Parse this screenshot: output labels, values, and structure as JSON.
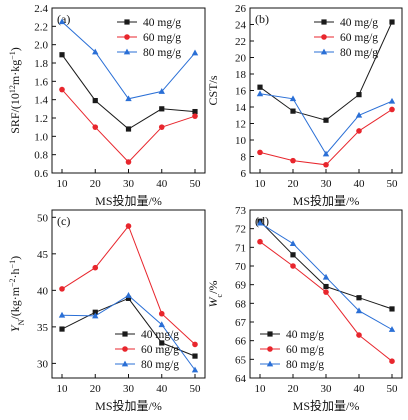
{
  "series_colors": [
    "#1a1a1a",
    "#e8262d",
    "#2a6fd6"
  ],
  "chart_data": [
    {
      "type": "line",
      "panel_label": "(a)",
      "x": [
        10,
        20,
        30,
        40,
        50
      ],
      "xticks": [
        "10",
        "20",
        "30",
        "40",
        "50"
      ],
      "xlim": [
        10,
        50
      ],
      "ylim": [
        0.6,
        2.4
      ],
      "yticks": [
        "0.6",
        "0.8",
        "1.0",
        "1.2",
        "1.4",
        "1.6",
        "1.8",
        "2.0",
        "2.2",
        "2.4"
      ],
      "xlabel": "MS投加量/%",
      "ylabel": "SRF/(10¹²m·kg⁻¹)",
      "legend": "top-right",
      "series": [
        {
          "name": "40 mg/g",
          "marker": "square",
          "values": [
            1.89,
            1.39,
            1.08,
            1.3,
            1.27
          ]
        },
        {
          "name": "60 mg/g",
          "marker": "circle",
          "values": [
            1.51,
            1.1,
            0.72,
            1.1,
            1.22
          ]
        },
        {
          "name": "80 mg/g",
          "marker": "triangle",
          "values": [
            2.25,
            1.92,
            1.41,
            1.49,
            1.91
          ]
        }
      ]
    },
    {
      "type": "line",
      "panel_label": "(b)",
      "x": [
        10,
        20,
        30,
        40,
        50
      ],
      "xticks": [
        "10",
        "20",
        "30",
        "40",
        "50"
      ],
      "xlim": [
        10,
        50
      ],
      "ylim": [
        6,
        26
      ],
      "yticks": [
        "6",
        "8",
        "10",
        "12",
        "14",
        "16",
        "18",
        "20",
        "22",
        "24",
        "26"
      ],
      "xlabel": "MS投加量/%",
      "ylabel": "CST/s",
      "legend": "top-right",
      "series": [
        {
          "name": "40 mg/g",
          "marker": "square",
          "values": [
            16.4,
            13.5,
            12.4,
            15.5,
            24.3
          ]
        },
        {
          "name": "60 mg/g",
          "marker": "circle",
          "values": [
            8.5,
            7.5,
            7.0,
            11.1,
            13.7
          ]
        },
        {
          "name": "80 mg/g",
          "marker": "triangle",
          "values": [
            15.6,
            15.0,
            8.3,
            13.0,
            14.7
          ]
        }
      ]
    },
    {
      "type": "line",
      "panel_label": "(c)",
      "x": [
        10,
        20,
        30,
        40,
        50
      ],
      "xticks": [
        "10",
        "20",
        "30",
        "40",
        "50"
      ],
      "xlim": [
        10,
        50
      ],
      "ylim": [
        28,
        51
      ],
      "yticks": [
        "30",
        "35",
        "40",
        "45",
        "50"
      ],
      "xlabel": "MS投加量/%",
      "ylabel": "Y_N/(kg·m⁻²·h⁻¹)",
      "legend": "bottom-right",
      "series": [
        {
          "name": "40 mg/g",
          "marker": "square",
          "values": [
            34.7,
            37.0,
            38.9,
            32.8,
            31.0
          ]
        },
        {
          "name": "60 mg/g",
          "marker": "circle",
          "values": [
            40.2,
            43.1,
            48.8,
            36.8,
            32.6
          ]
        },
        {
          "name": "80 mg/g",
          "marker": "triangle",
          "values": [
            36.6,
            36.5,
            39.3,
            35.3,
            29.1
          ]
        }
      ]
    },
    {
      "type": "line",
      "panel_label": "(d)",
      "x": [
        10,
        20,
        30,
        40,
        50
      ],
      "xticks": [
        "10",
        "20",
        "30",
        "40",
        "50"
      ],
      "xlim": [
        10,
        50
      ],
      "ylim": [
        64,
        73
      ],
      "yticks": [
        "64",
        "65",
        "66",
        "67",
        "68",
        "69",
        "70",
        "71",
        "72",
        "73"
      ],
      "xlabel": "MS投加量/%",
      "ylabel": "W_c/%",
      "legend": "bottom-left",
      "series": [
        {
          "name": "40 mg/g",
          "marker": "square",
          "values": [
            72.4,
            70.6,
            68.9,
            68.3,
            67.7
          ]
        },
        {
          "name": "60 mg/g",
          "marker": "circle",
          "values": [
            71.3,
            70.0,
            68.6,
            66.3,
            64.9
          ]
        },
        {
          "name": "80 mg/g",
          "marker": "triangle",
          "values": [
            72.3,
            71.2,
            69.4,
            67.6,
            66.6
          ]
        }
      ]
    }
  ]
}
